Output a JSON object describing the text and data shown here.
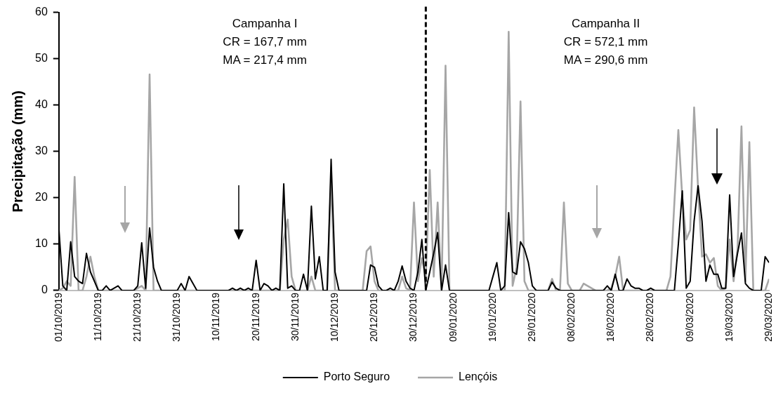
{
  "chart_data": {
    "type": "line",
    "ylabel": "Precipitação (mm)",
    "x": [
      "2019-10-01",
      "2019-10-02",
      "2019-10-03",
      "2019-10-04",
      "2019-10-05",
      "2019-10-06",
      "2019-10-07",
      "2019-10-08",
      "2019-10-09",
      "2019-10-10",
      "2019-10-11",
      "2019-10-12",
      "2019-10-13",
      "2019-10-14",
      "2019-10-15",
      "2019-10-16",
      "2019-10-17",
      "2019-10-18",
      "2019-10-19",
      "2019-10-20",
      "2019-10-21",
      "2019-10-22",
      "2019-10-23",
      "2019-10-24",
      "2019-10-25",
      "2019-10-26",
      "2019-10-27",
      "2019-10-28",
      "2019-10-29",
      "2019-10-30",
      "2019-10-31",
      "2019-11-01",
      "2019-11-02",
      "2019-11-03",
      "2019-11-04",
      "2019-11-05",
      "2019-11-06",
      "2019-11-07",
      "2019-11-08",
      "2019-11-09",
      "2019-11-10",
      "2019-11-11",
      "2019-11-12",
      "2019-11-13",
      "2019-11-14",
      "2019-11-15",
      "2019-11-16",
      "2019-11-17",
      "2019-11-18",
      "2019-11-19",
      "2019-11-20",
      "2019-11-21",
      "2019-11-22",
      "2019-11-23",
      "2019-11-24",
      "2019-11-25",
      "2019-11-26",
      "2019-11-27",
      "2019-11-28",
      "2019-11-29",
      "2019-11-30",
      "2019-12-01",
      "2019-12-02",
      "2019-12-03",
      "2019-12-04",
      "2019-12-05",
      "2019-12-06",
      "2019-12-07",
      "2019-12-08",
      "2019-12-09",
      "2019-12-10",
      "2019-12-11",
      "2019-12-12",
      "2019-12-13",
      "2019-12-14",
      "2019-12-15",
      "2019-12-16",
      "2019-12-17",
      "2019-12-18",
      "2019-12-19",
      "2019-12-20",
      "2019-12-21",
      "2019-12-22",
      "2019-12-23",
      "2019-12-24",
      "2019-12-25",
      "2019-12-26",
      "2019-12-27",
      "2019-12-28",
      "2019-12-29",
      "2019-12-30",
      "2019-12-31",
      "2020-01-01",
      "2020-01-02",
      "2020-01-03",
      "2020-01-04",
      "2020-01-05",
      "2020-01-06",
      "2020-01-07",
      "2020-01-08",
      "2020-01-09",
      "2020-01-10",
      "2020-01-11",
      "2020-01-12",
      "2020-01-13",
      "2020-01-14",
      "2020-01-15",
      "2020-01-16",
      "2020-01-17",
      "2020-01-18",
      "2020-01-19",
      "2020-01-20",
      "2020-01-21",
      "2020-01-22",
      "2020-01-23",
      "2020-01-24",
      "2020-01-25",
      "2020-01-26",
      "2020-01-27",
      "2020-01-28",
      "2020-01-29",
      "2020-01-30",
      "2020-01-31",
      "2020-02-01",
      "2020-02-02",
      "2020-02-03",
      "2020-02-04",
      "2020-02-05",
      "2020-02-06",
      "2020-02-07",
      "2020-02-08",
      "2020-02-09",
      "2020-02-10",
      "2020-02-11",
      "2020-02-12",
      "2020-02-13",
      "2020-02-14",
      "2020-02-15",
      "2020-02-16",
      "2020-02-17",
      "2020-02-18",
      "2020-02-19",
      "2020-02-20",
      "2020-02-21",
      "2020-02-22",
      "2020-02-23",
      "2020-02-24",
      "2020-02-25",
      "2020-02-26",
      "2020-02-27",
      "2020-02-28",
      "2020-02-29",
      "2020-03-01",
      "2020-03-02",
      "2020-03-03",
      "2020-03-04",
      "2020-03-05",
      "2020-03-06",
      "2020-03-07",
      "2020-03-08",
      "2020-03-09",
      "2020-03-10",
      "2020-03-11",
      "2020-03-12",
      "2020-03-13",
      "2020-03-14",
      "2020-03-15",
      "2020-03-16",
      "2020-03-17",
      "2020-03-18",
      "2020-03-19",
      "2020-03-20",
      "2020-03-21",
      "2020-03-22",
      "2020-03-23",
      "2020-03-24",
      "2020-03-25",
      "2020-03-26",
      "2020-03-27",
      "2020-03-28",
      "2020-03-29"
    ],
    "series": [
      {
        "name": "Porto Seguro",
        "color": "#000000",
        "values": [
          13.5,
          1,
          0,
          10.5,
          3,
          2,
          1.5,
          8,
          4,
          2,
          0,
          0,
          1,
          0,
          0.5,
          1,
          0,
          0,
          0,
          0,
          1,
          10.3,
          0.5,
          13.5,
          5,
          2,
          0,
          0,
          0,
          0,
          0,
          1.5,
          0,
          3,
          1.5,
          0,
          0,
          0,
          0,
          0,
          0,
          0,
          0,
          0,
          0.5,
          0,
          0.5,
          0,
          0.5,
          0,
          6.5,
          0,
          1.5,
          1,
          0,
          0.5,
          0,
          23,
          0.5,
          1,
          0,
          0,
          3.5,
          0,
          18.2,
          2.5,
          7.3,
          0,
          0,
          28.3,
          4,
          0,
          0,
          0,
          0,
          0,
          0,
          0,
          0,
          5.5,
          5,
          1,
          0,
          0,
          0.5,
          0,
          2,
          5.3,
          2,
          0.5,
          0,
          4,
          11,
          0,
          4,
          8,
          12.5,
          0,
          5.5,
          0,
          0,
          0,
          0,
          0,
          0,
          0,
          0,
          0,
          0,
          0,
          3,
          6,
          0,
          1,
          16.8,
          4,
          3.5,
          10.5,
          9,
          6,
          1,
          0,
          0,
          0,
          0,
          1.8,
          0.5,
          0,
          0,
          0,
          0,
          0,
          0,
          0,
          0,
          0,
          0,
          0,
          0,
          1,
          0,
          3.5,
          0,
          0,
          2.5,
          1,
          0.5,
          0.5,
          0,
          0,
          0.5,
          0,
          0,
          0,
          0,
          0,
          0,
          10,
          21.5,
          0.5,
          2,
          15,
          22.6,
          15,
          2,
          5.5,
          3.5,
          3.5,
          0.5,
          0.5,
          20.6,
          3,
          8,
          12.4,
          1.5,
          0.5,
          0,
          0,
          0,
          7.3,
          6
        ]
      },
      {
        "name": "Lençóis",
        "color": "#a6a6a6",
        "values": [
          0,
          0.5,
          2,
          1,
          24.5,
          0,
          0,
          3,
          7.3,
          3,
          0,
          0,
          0,
          0,
          0,
          0,
          0,
          0,
          0,
          0,
          0.5,
          1,
          0,
          46.6,
          0,
          0,
          0,
          0,
          0,
          0,
          0,
          0,
          0,
          0,
          0,
          0,
          0,
          0,
          0,
          0,
          0,
          0,
          0,
          0,
          0,
          0,
          0,
          0,
          0,
          0,
          0,
          0,
          0,
          0,
          0,
          0,
          0,
          11,
          15.3,
          3,
          0,
          0,
          0,
          0,
          3,
          0,
          0,
          0,
          0,
          24,
          0,
          0,
          0,
          0,
          0,
          0,
          0,
          0,
          8.5,
          9.5,
          2,
          0,
          0,
          0,
          0,
          0,
          0,
          3,
          0.5,
          0,
          19,
          2,
          7,
          3,
          26,
          3,
          19,
          0,
          48.5,
          0,
          0,
          0,
          0,
          0,
          0,
          0,
          0,
          0,
          0,
          0,
          0,
          0,
          0,
          0,
          55.8,
          1,
          5,
          40.8,
          2,
          0,
          0,
          0,
          0,
          0,
          0,
          2.5,
          0,
          0,
          19,
          1.5,
          0,
          0,
          0,
          1.5,
          1,
          0.5,
          0,
          0,
          0,
          0,
          0.5,
          3,
          7.3,
          0,
          0,
          0,
          0,
          0,
          0,
          0,
          0,
          0,
          0,
          0,
          0,
          3,
          19,
          34.6,
          20,
          11,
          13,
          39.5,
          22,
          7.3,
          7.8,
          6,
          7,
          1,
          0,
          0.5,
          11,
          2,
          9,
          35.4,
          2,
          32,
          0,
          0,
          0,
          0,
          2.5
        ]
      }
    ],
    "xlim": [
      "2019-10-01",
      "2020-03-29"
    ],
    "xticks": [
      {
        "value": "2019-10-01",
        "label": "01/10/2019"
      },
      {
        "value": "2019-10-11",
        "label": "11/10/2019"
      },
      {
        "value": "2019-10-21",
        "label": "21/10/2019"
      },
      {
        "value": "2019-10-31",
        "label": "31/10/2019"
      },
      {
        "value": "2019-11-10",
        "label": "10/11/2019"
      },
      {
        "value": "2019-11-20",
        "label": "20/11/2019"
      },
      {
        "value": "2019-11-30",
        "label": "30/11/2019"
      },
      {
        "value": "2019-12-10",
        "label": "10/12/2019"
      },
      {
        "value": "2019-12-20",
        "label": "20/12/2019"
      },
      {
        "value": "2019-12-30",
        "label": "30/12/2019"
      },
      {
        "value": "2020-01-09",
        "label": "09/01/2020"
      },
      {
        "value": "2020-01-19",
        "label": "19/01/2020"
      },
      {
        "value": "2020-01-29",
        "label": "29/01/2020"
      },
      {
        "value": "2020-02-08",
        "label": "08/02/2020"
      },
      {
        "value": "2020-02-18",
        "label": "18/02/2020"
      },
      {
        "value": "2020-02-28",
        "label": "28/02/2020"
      },
      {
        "value": "2020-03-09",
        "label": "09/03/2020"
      },
      {
        "value": "2020-03-19",
        "label": "19/03/2020"
      },
      {
        "value": "2020-03-29",
        "label": "29/03/2020"
      }
    ],
    "ylim": [
      0,
      60
    ],
    "yticks": [
      0,
      10,
      20,
      30,
      40,
      50,
      60
    ],
    "grid": false,
    "legend": "bottom",
    "ref_lines": [
      {
        "axis": "x",
        "value": "2020-01-02",
        "color": "#000000",
        "line_style": "dashed"
      }
    ],
    "annotations": [
      "Campanha I\nCR = 167,7 mm\nMA = 217,4 mm",
      "Campanha II\nCR = 572,1 mm\nMA = 290,6 mm"
    ]
  }
}
